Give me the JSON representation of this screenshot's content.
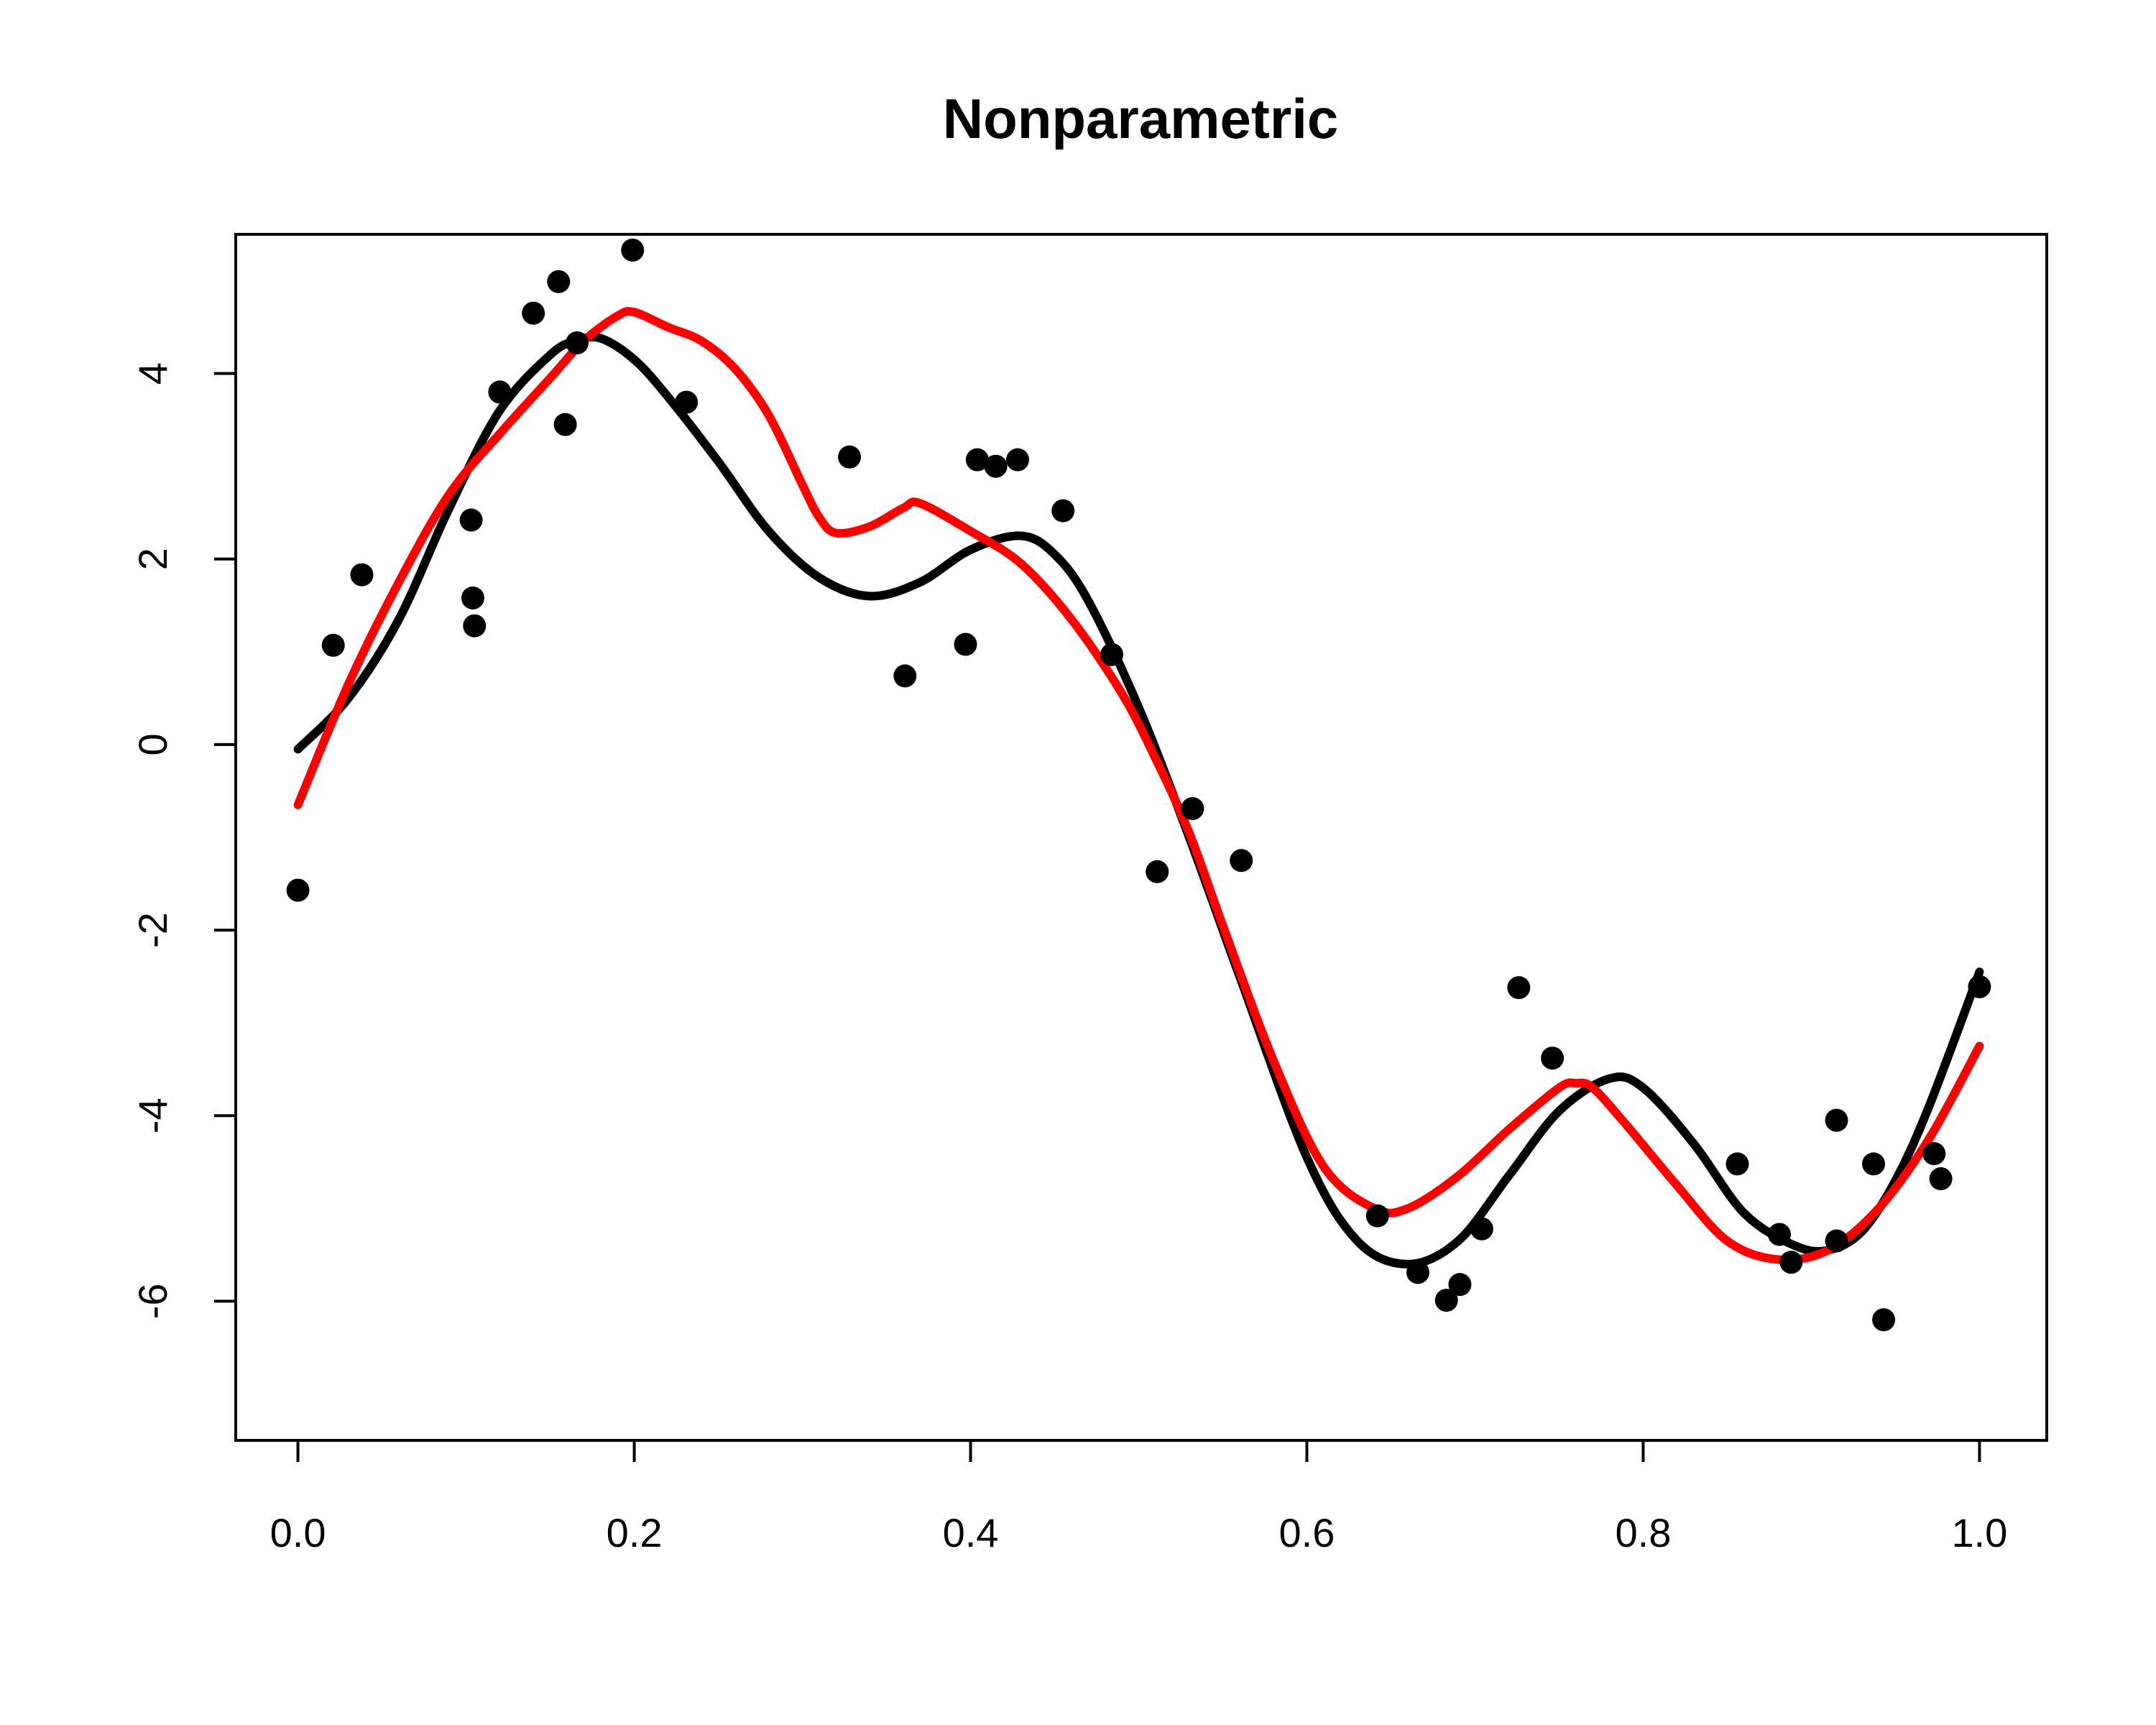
{
  "chart_data": {
    "type": "scatter",
    "title": "Nonparametric",
    "xlabel": "",
    "ylabel": "",
    "xlim": [
      -0.037,
      1.04
    ],
    "ylim": [
      -7.5,
      5.5
    ],
    "grid": false,
    "x_ticks": [
      0.0,
      0.2,
      0.4,
      0.6,
      0.8,
      1.0
    ],
    "x_tick_labels": [
      "0.0",
      "0.2",
      "0.4",
      "0.6",
      "0.8",
      "1.0"
    ],
    "y_ticks": [
      -6,
      -4,
      -2,
      0,
      2,
      4
    ],
    "y_tick_labels": [
      "-6",
      "-4",
      "-2",
      "0",
      "2",
      "4"
    ],
    "colors": {
      "points": "#000000",
      "true_curve": "#000000",
      "fit_curve": "#ff0000"
    },
    "points": {
      "x": [
        0.0,
        0.021,
        0.038,
        0.103,
        0.104,
        0.105,
        0.12,
        0.14,
        0.155,
        0.159,
        0.166,
        0.199,
        0.231,
        0.328,
        0.361,
        0.397,
        0.404,
        0.415,
        0.428,
        0.455,
        0.484,
        0.511,
        0.532,
        0.561,
        0.642,
        0.666,
        0.683,
        0.691,
        0.704,
        0.726,
        0.746,
        0.856,
        0.881,
        0.888,
        0.915,
        0.915,
        0.937,
        0.943,
        0.973,
        0.977,
        1.0
      ],
      "y": [
        -1.57,
        1.07,
        1.83,
        2.42,
        1.58,
        1.28,
        3.8,
        4.65,
        4.99,
        3.45,
        4.33,
        5.33,
        3.69,
        3.1,
        0.74,
        1.08,
        3.07,
        3.0,
        3.07,
        2.52,
        0.97,
        -1.37,
        -0.69,
        -1.25,
        -5.08,
        -5.69,
        -5.99,
        -5.82,
        -5.22,
        -2.62,
        -3.38,
        -4.52,
        -5.28,
        -5.58,
        -4.05,
        -5.35,
        -4.52,
        -6.2,
        -4.41,
        -4.68,
        -2.61
      ]
    },
    "series": [
      {
        "type": "line",
        "x": [
          0.0,
          0.03,
          0.06,
          0.09,
          0.12,
          0.15,
          0.165,
          0.18,
          0.2,
          0.22,
          0.25,
          0.28,
          0.31,
          0.34,
          0.37,
          0.4,
          0.43,
          0.45,
          0.47,
          0.5,
          0.53,
          0.56,
          0.6,
          0.63,
          0.66,
          0.69,
          0.72,
          0.75,
          0.78,
          0.8,
          0.83,
          0.86,
          0.89,
          0.91,
          0.93,
          0.95,
          0.97,
          1.0
        ],
        "y": [
          -0.05,
          0.5,
          1.35,
          2.55,
          3.6,
          4.2,
          4.35,
          4.38,
          4.15,
          3.75,
          3.05,
          2.3,
          1.8,
          1.6,
          1.75,
          2.1,
          2.25,
          2.05,
          1.55,
          0.4,
          -1.0,
          -2.5,
          -4.45,
          -5.35,
          -5.6,
          -5.35,
          -4.65,
          -3.95,
          -3.6,
          -3.7,
          -4.3,
          -5.05,
          -5.4,
          -5.45,
          -5.25,
          -4.7,
          -3.9,
          -2.45
        ]
      },
      {
        "type": "line",
        "x": [
          0.0,
          0.03,
          0.06,
          0.09,
          0.12,
          0.15,
          0.17,
          0.19,
          0.2,
          0.22,
          0.24,
          0.26,
          0.28,
          0.3,
          0.31,
          0.32,
          0.34,
          0.36,
          0.37,
          0.4,
          0.43,
          0.46,
          0.49,
          0.51,
          0.53,
          0.55,
          0.58,
          0.61,
          0.64,
          0.66,
          0.69,
          0.72,
          0.75,
          0.76,
          0.77,
          0.79,
          0.82,
          0.85,
          0.88,
          0.91,
          0.94,
          0.97,
          1.0
        ],
        "y": [
          -0.65,
          0.65,
          1.75,
          2.7,
          3.35,
          3.95,
          4.35,
          4.62,
          4.66,
          4.5,
          4.35,
          4.05,
          3.55,
          2.8,
          2.45,
          2.28,
          2.35,
          2.55,
          2.6,
          2.3,
          1.95,
          1.35,
          0.55,
          -0.15,
          -0.95,
          -1.95,
          -3.4,
          -4.55,
          -5.0,
          -5.0,
          -4.65,
          -4.15,
          -3.7,
          -3.65,
          -3.7,
          -4.1,
          -4.75,
          -5.35,
          -5.55,
          -5.45,
          -5.0,
          -4.25,
          -3.25
        ]
      }
    ]
  }
}
